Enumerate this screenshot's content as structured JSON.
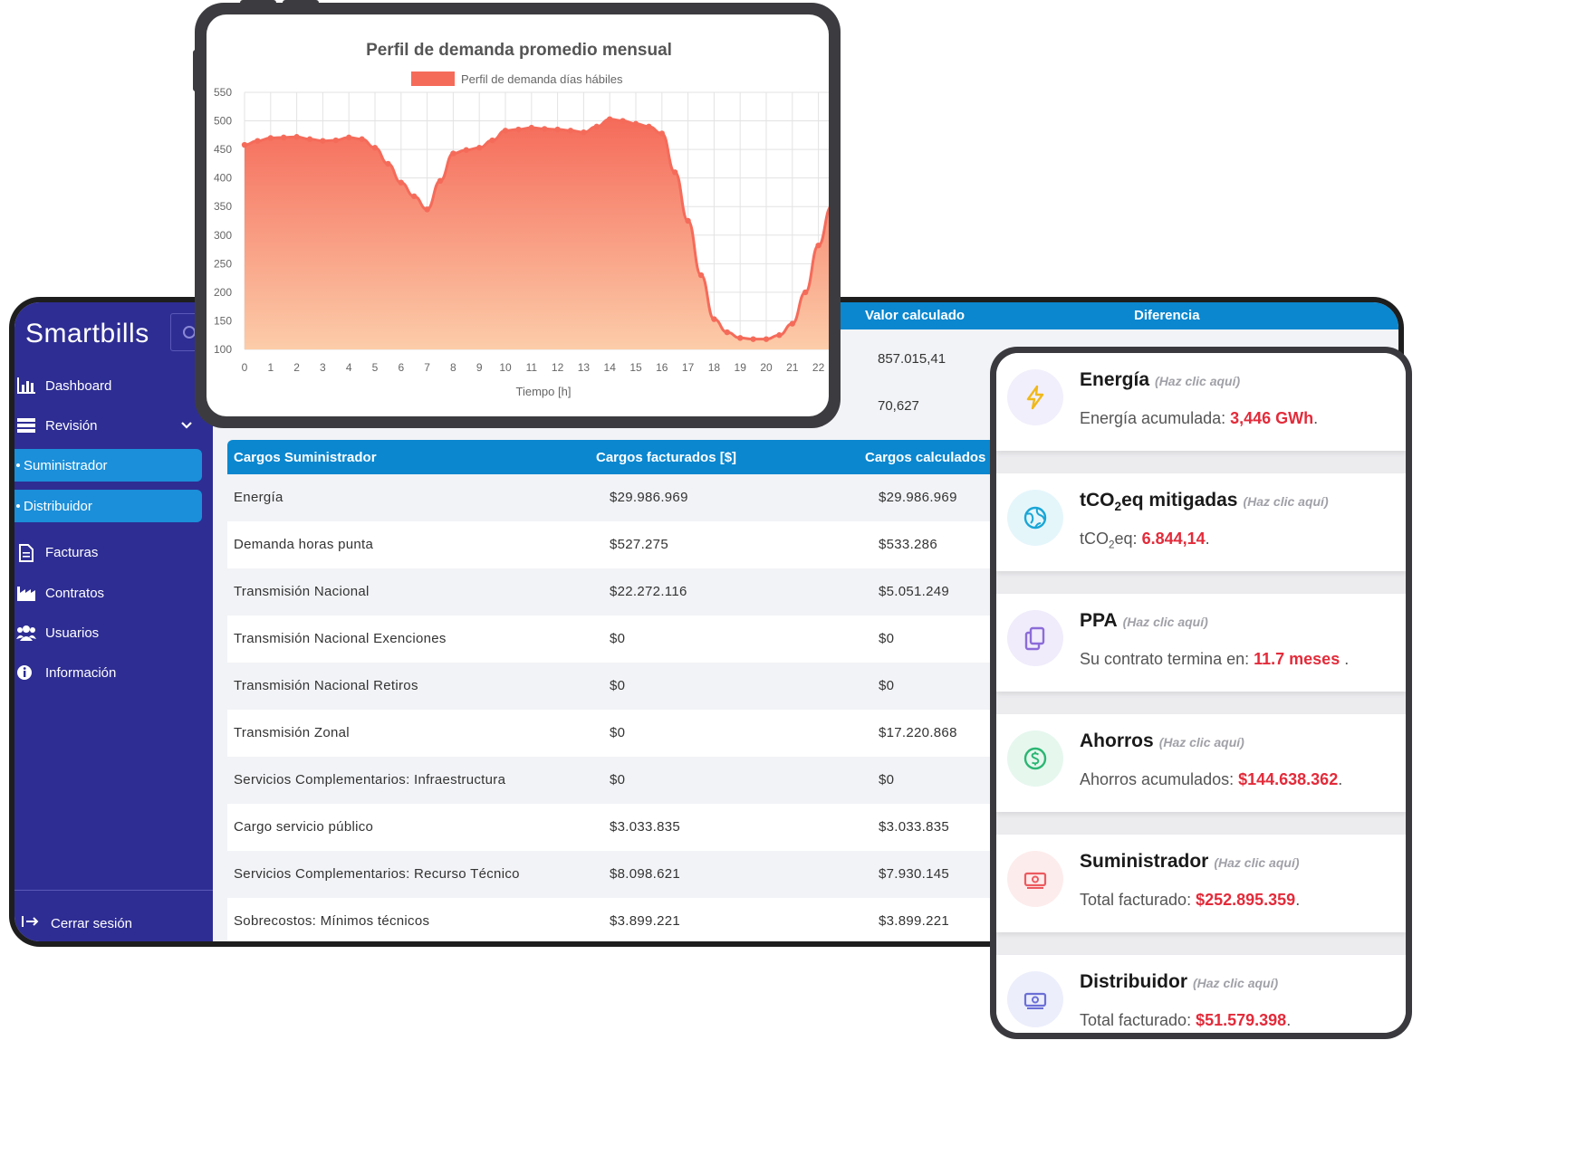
{
  "sidebar": {
    "brand": "Smartbills",
    "items": [
      {
        "label": "Dashboard"
      },
      {
        "label": "Revisión"
      },
      {
        "label": "Suministrador"
      },
      {
        "label": "Distribuidor"
      },
      {
        "label": "Facturas"
      },
      {
        "label": "Contratos"
      },
      {
        "label": "Usuarios"
      },
      {
        "label": "Información"
      }
    ],
    "logout": "Cerrar sesión"
  },
  "summary": {
    "headers": {
      "calc": "Valor calculado",
      "diff": "Diferencia"
    },
    "values": [
      "857.015,41",
      "70,627"
    ]
  },
  "charges_table": {
    "headers": [
      "Cargos Suministrador",
      "Cargos facturados [$]",
      "Cargos calculados"
    ],
    "rows": [
      [
        "Energía",
        "$29.986.969",
        "$29.986.969"
      ],
      [
        "Demanda horas punta",
        "$527.275",
        "$533.286"
      ],
      [
        "Transmisión Nacional",
        "$22.272.116",
        "$5.051.249"
      ],
      [
        "Transmisión Nacional Exenciones",
        "$0",
        "$0"
      ],
      [
        "Transmisión Nacional Retiros",
        "$0",
        "$0"
      ],
      [
        "Transmisión Zonal",
        "$0",
        "$17.220.868"
      ],
      [
        "Servicios Complementarios: Infraestructura",
        "$0",
        "$0"
      ],
      [
        "Cargo servicio público",
        "$3.033.835",
        "$3.033.835"
      ],
      [
        "Servicios Complementarios: Recurso Técnico",
        "$8.098.621",
        "$7.930.145"
      ],
      [
        "Sobrecostos: Mínimos técnicos",
        "$3.899.221",
        "$3.899.221"
      ]
    ]
  },
  "chart_data": {
    "type": "area",
    "title": "Perfil de demanda promedio mensual",
    "xlabel": "Tiempo [h]",
    "ylabel": "",
    "ylim": [
      100,
      550
    ],
    "yticks": [
      100,
      150,
      200,
      250,
      300,
      350,
      400,
      450,
      500,
      550
    ],
    "xticks": [
      0,
      1,
      2,
      3,
      4,
      5,
      6,
      7,
      8,
      9,
      10,
      11,
      12,
      13,
      14,
      15,
      16,
      17,
      18,
      19,
      20,
      21,
      22
    ],
    "grid": true,
    "legend_position": "top",
    "series": [
      {
        "name": "Perfil de demanda días hábiles",
        "color": "#f56b5a",
        "x": [
          0,
          0.5,
          1,
          1.5,
          2,
          2.5,
          3,
          3.5,
          4,
          4.5,
          5,
          5.5,
          6,
          6.5,
          7,
          7.5,
          8,
          8.5,
          9,
          9.5,
          10,
          10.5,
          11,
          11.5,
          12,
          12.5,
          13,
          13.5,
          14,
          14.5,
          15,
          15.5,
          16,
          16.5,
          17,
          17.5,
          18,
          18.5,
          19,
          19.5,
          20,
          20.5,
          21,
          21.5,
          22,
          22.5
        ],
        "values": [
          458,
          465,
          470,
          471,
          472,
          468,
          465,
          466,
          471,
          468,
          453,
          425,
          392,
          368,
          345,
          395,
          443,
          449,
          453,
          466,
          483,
          485,
          488,
          486,
          485,
          483,
          480,
          490,
          503,
          500,
          495,
          490,
          478,
          410,
          325,
          230,
          153,
          130,
          120,
          118,
          118,
          125,
          145,
          200,
          282,
          350
        ]
      }
    ]
  },
  "cards": [
    {
      "title": "Energía",
      "hint": "(Haz clic aquí)",
      "label": "Energía acumulada: ",
      "value": "3,446 GWh",
      "suffix": ".",
      "icon": "bolt-icon",
      "icon_color": "#f0b91a",
      "icon_bg": "#f1effb"
    },
    {
      "title_pre": "tCO",
      "title_sub": "2",
      "title_post": "eq mitigadas",
      "hint": "(Haz clic aquí)",
      "label_pre": "tCO",
      "label_sub": "2",
      "label_post": "eq: ",
      "value": "6.844,14",
      "suffix": ".",
      "icon": "globe-icon",
      "icon_color": "#19a6d6",
      "icon_bg": "#e5f6fb"
    },
    {
      "title": "PPA",
      "hint": "(Haz clic aquí)",
      "label": "Su contrato termina en: ",
      "value": "11.7 meses",
      "suffix": " .",
      "icon": "documents-icon",
      "icon_color": "#8b6cd8",
      "icon_bg": "#f0ecfb"
    },
    {
      "title": "Ahorros",
      "hint": "(Haz clic aquí)",
      "label": "Ahorros acumulados: ",
      "value": "$144.638.362",
      "suffix": ".",
      "icon": "dollar-icon",
      "icon_color": "#2bb673",
      "icon_bg": "#e6f7ee"
    },
    {
      "title": "Suministrador",
      "hint": "(Haz clic aquí)",
      "label": "Total facturado: ",
      "value": "$252.895.359",
      "suffix": ".",
      "icon": "cash-icon",
      "icon_color": "#ec5a5f",
      "icon_bg": "#fdecec"
    },
    {
      "title": "Distribuidor",
      "hint": "(Haz clic aquí)",
      "label": "Total facturado: ",
      "value": "$51.579.398",
      "suffix": ".",
      "icon": "cash-icon",
      "icon_color": "#6b6fd6",
      "icon_bg": "#eceefb"
    }
  ]
}
